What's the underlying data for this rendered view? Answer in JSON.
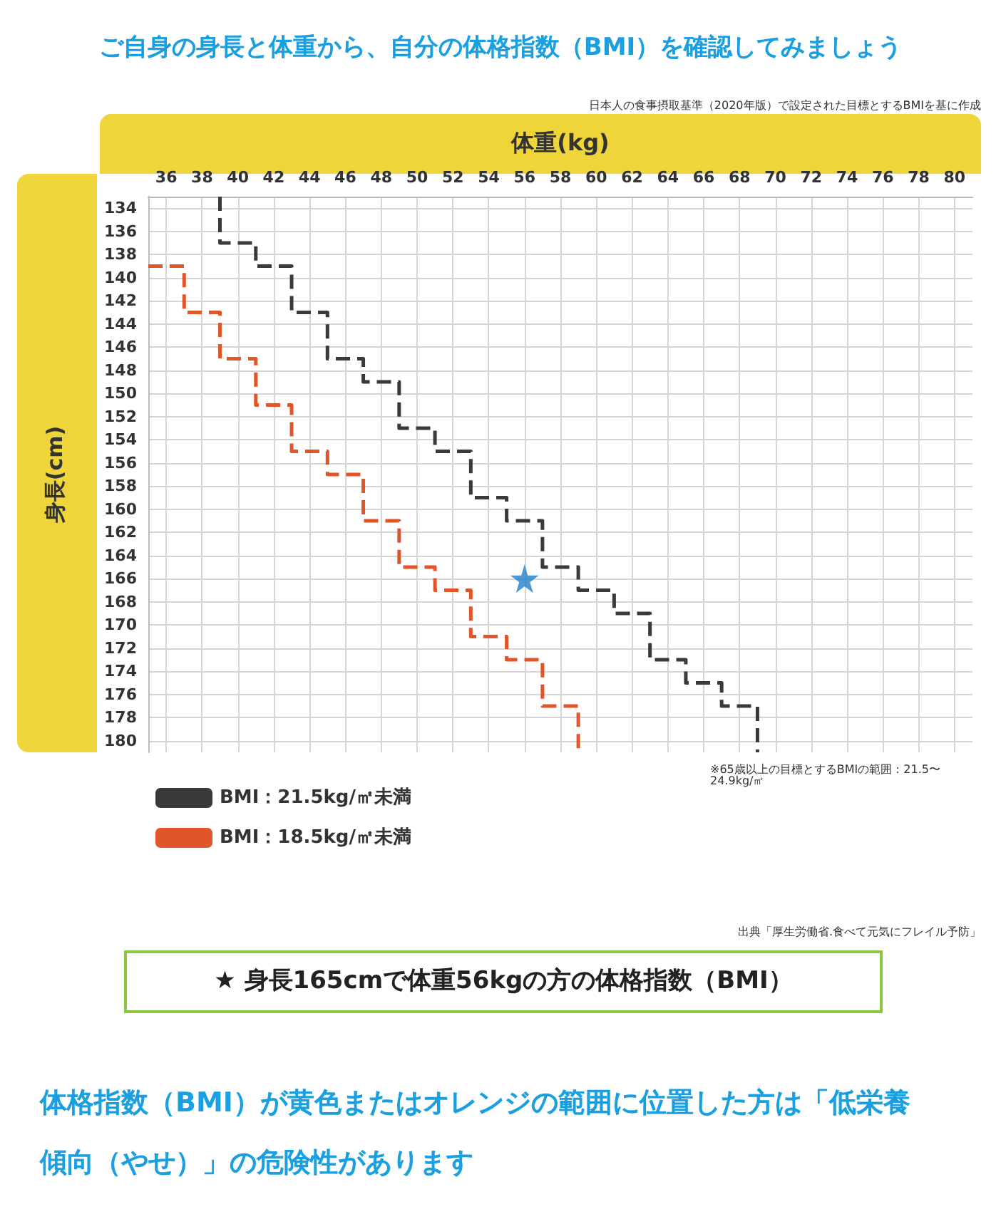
{
  "chart_data": {
    "type": "line",
    "title": "ご自身の身長と体重から、自分の体格指数（BMI）を確認してみましょう",
    "xlabel": "体重(kg)",
    "ylabel": "身長(cm)",
    "xlim": [
      35,
      81
    ],
    "xticks": [
      36,
      38,
      40,
      42,
      44,
      46,
      48,
      50,
      52,
      54,
      56,
      58,
      60,
      62,
      64,
      66,
      68,
      70,
      72,
      74,
      76,
      78,
      80
    ],
    "ylim": [
      181,
      133
    ],
    "yticks": [
      134,
      136,
      138,
      140,
      142,
      144,
      146,
      148,
      150,
      152,
      154,
      156,
      158,
      160,
      162,
      164,
      166,
      168,
      170,
      172,
      174,
      176,
      178,
      180
    ],
    "grid": true,
    "legend": "bottom",
    "line_style": "dashed",
    "series": [
      {
        "name": "BMI：21.5kg/㎡未満",
        "color": "#3a3a3a",
        "x": [
          39,
          39,
          41,
          41,
          43,
          43,
          45,
          45,
          47,
          47,
          49,
          49,
          51,
          51,
          53,
          53,
          55,
          55,
          57,
          57,
          59,
          59,
          61,
          61,
          63,
          63,
          65,
          65,
          67,
          67,
          69,
          69
        ],
        "values": [
          133,
          137,
          137,
          139,
          139,
          143,
          143,
          147,
          147,
          149,
          149,
          153,
          153,
          155,
          155,
          159,
          159,
          161,
          161,
          165,
          165,
          167,
          167,
          169,
          169,
          173,
          173,
          175,
          175,
          177,
          177,
          181
        ]
      },
      {
        "name": "BMI：18.5kg/㎡未満",
        "color": "#e0562a",
        "x": [
          35,
          37,
          37,
          39,
          39,
          41,
          41,
          43,
          43,
          45,
          45,
          47,
          47,
          49,
          49,
          51,
          51,
          53,
          53,
          55,
          55,
          57,
          57,
          59,
          59
        ],
        "values": [
          139,
          139,
          143,
          143,
          147,
          147,
          151,
          151,
          155,
          155,
          157,
          157,
          161,
          161,
          165,
          165,
          167,
          167,
          171,
          171,
          173,
          173,
          177,
          177,
          181
        ]
      },
      {
        "type": "scatter",
        "marker": "star",
        "color": "#1f7fc8",
        "x": [
          56
        ],
        "values": [
          166
        ]
      }
    ],
    "annotations": [
      "日本人の食事摂取基準（2020年版）で設定された目標とするBMIを基に作成",
      "※65歳以上の目標とするBMIの範囲：21.5〜24.9kg/㎡",
      "出典「厚生労働省.食べて元気にフレイル予防」",
      "★ 身長165cmで体重56kgの方の体格指数（BMI）",
      "体格指数（BMI）が黄色またはオレンジの範囲に位置した方は「低栄養傾向（やせ）」の危険性があります"
    ]
  }
}
